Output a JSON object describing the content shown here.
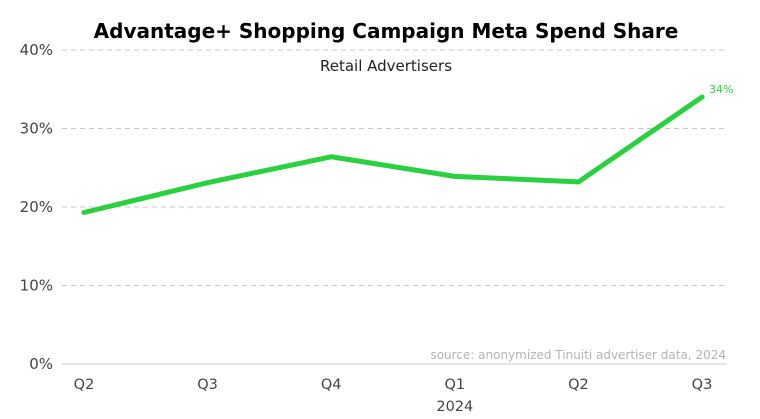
{
  "chart_data": {
    "type": "line",
    "title": "Advantage+ Shopping Campaign Meta Spend Share",
    "subtitle": "Retail Advertisers",
    "categories": [
      "Q2",
      "Q3",
      "Q4",
      "Q1",
      "Q2",
      "Q3"
    ],
    "year_labels": [
      "",
      "",
      "",
      "2024",
      "",
      ""
    ],
    "series": [
      {
        "values": [
          19.3,
          23.1,
          26.4,
          23.9,
          23.2,
          34.0
        ],
        "color": "#2ad13f"
      }
    ],
    "ylim": [
      0,
      40
    ],
    "y_ticks": [
      0,
      10,
      20,
      30,
      40
    ],
    "y_tick_labels": [
      "0%",
      "10%",
      "20%",
      "30%",
      "40%"
    ],
    "data_labels": [
      "",
      "",
      "",
      "",
      "",
      "34%"
    ],
    "grid": true,
    "source_note": "source: anonymized Tinuiti advertiser data, 2024"
  }
}
